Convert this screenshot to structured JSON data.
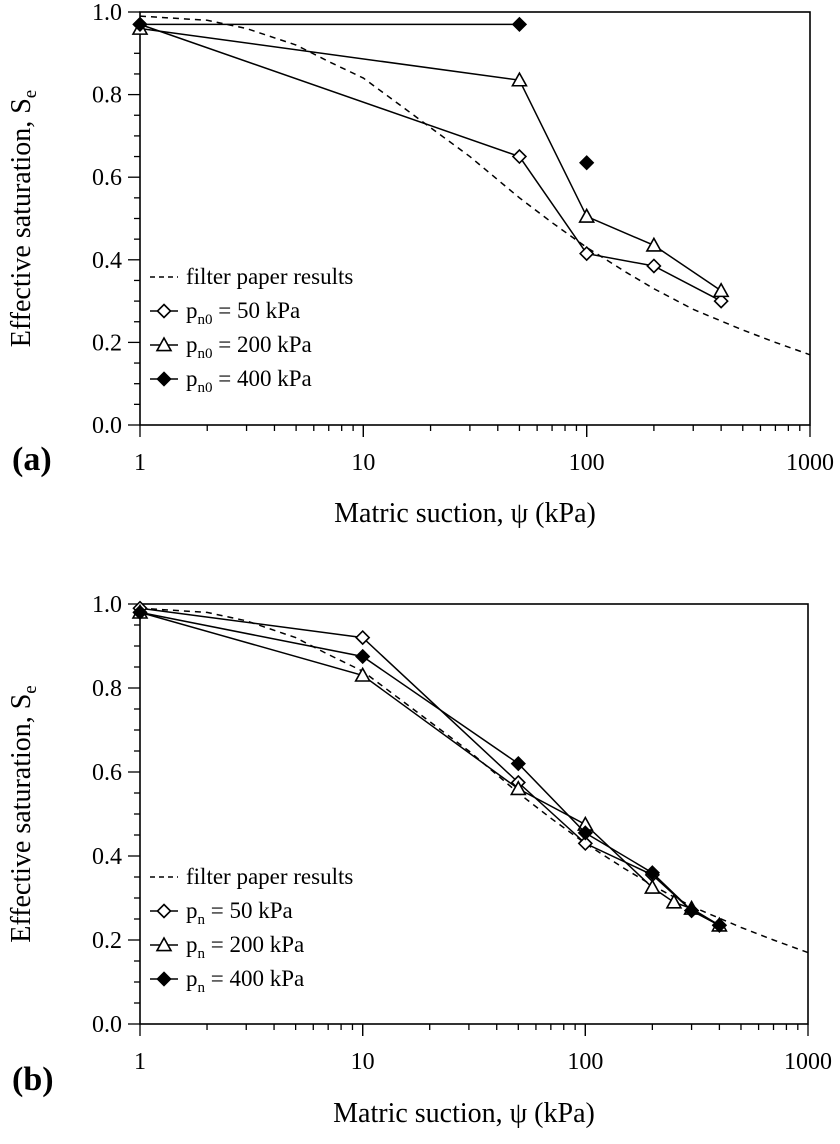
{
  "chart_data": [
    {
      "type": "scatter",
      "panel_label": "(a)",
      "xlabel": "Matric suction, ψ (kPa)",
      "ylabel_main": "Effective saturation, S",
      "ylabel_sub": "e",
      "x_scale": "log",
      "xlim": [
        1,
        1000
      ],
      "ylim": [
        0,
        1.0
      ],
      "x_ticks": [
        1,
        10,
        100,
        1000
      ],
      "x_tick_labels": [
        "1",
        "10",
        "100",
        "1000"
      ],
      "y_ticks": [
        0.0,
        0.2,
        0.4,
        0.6,
        0.8,
        1.0
      ],
      "y_tick_labels": [
        "0.0",
        "0.2",
        "0.4",
        "0.6",
        "0.8",
        "1.0"
      ],
      "grid": false,
      "legend_position": "bottom-left",
      "filter_paper": {
        "name": "filter paper results",
        "style": "dashed",
        "x": [
          1,
          2,
          3,
          5,
          7,
          10,
          15,
          20,
          30,
          50,
          70,
          100,
          150,
          200,
          300,
          500,
          700,
          1000
        ],
        "y": [
          0.99,
          0.98,
          0.96,
          0.92,
          0.88,
          0.84,
          0.77,
          0.72,
          0.65,
          0.55,
          0.49,
          0.43,
          0.37,
          0.33,
          0.28,
          0.23,
          0.2,
          0.17
        ]
      },
      "series": [
        {
          "legend_pre": "p",
          "legend_sub": "n0",
          "legend_post": " = 50 kPa",
          "marker": "diamond-open",
          "segments": [
            {
              "x": [
                1,
                50,
                100,
                200,
                400
              ],
              "y": [
                0.97,
                0.65,
                0.415,
                0.385,
                0.3
              ]
            }
          ]
        },
        {
          "legend_pre": "p",
          "legend_sub": "n0",
          "legend_post": " = 200 kPa",
          "marker": "triangle-open",
          "segments": [
            {
              "x": [
                1,
                50,
                100,
                200,
                400
              ],
              "y": [
                0.96,
                0.835,
                0.505,
                0.435,
                0.325
              ]
            }
          ]
        },
        {
          "legend_pre": "p",
          "legend_sub": "n0",
          "legend_post": " = 400 kPa",
          "marker": "diamond-filled",
          "segments": [
            {
              "x": [
                1,
                50
              ],
              "y": [
                0.97,
                0.97
              ]
            },
            {
              "x": [
                100
              ],
              "y": [
                0.635
              ]
            }
          ]
        }
      ]
    },
    {
      "type": "scatter",
      "panel_label": "(b)",
      "xlabel": "Matric suction, ψ (kPa)",
      "ylabel_main": "Effective saturation, S",
      "ylabel_sub": "e",
      "x_scale": "log",
      "xlim": [
        1,
        1000
      ],
      "ylim": [
        0,
        1.0
      ],
      "x_ticks": [
        1,
        10,
        100,
        1000
      ],
      "x_tick_labels": [
        "1",
        "10",
        "100",
        "1000"
      ],
      "y_ticks": [
        0.0,
        0.2,
        0.4,
        0.6,
        0.8,
        1.0
      ],
      "y_tick_labels": [
        "0.0",
        "0.2",
        "0.4",
        "0.6",
        "0.8",
        "1.0"
      ],
      "grid": false,
      "legend_position": "bottom-left",
      "filter_paper": {
        "name": "filter paper results",
        "style": "dashed",
        "x": [
          1,
          2,
          3,
          5,
          7,
          10,
          15,
          20,
          30,
          50,
          70,
          100,
          150,
          200,
          300,
          500,
          700,
          1000
        ],
        "y": [
          0.99,
          0.98,
          0.96,
          0.92,
          0.88,
          0.84,
          0.77,
          0.72,
          0.65,
          0.55,
          0.49,
          0.43,
          0.37,
          0.33,
          0.28,
          0.23,
          0.2,
          0.17
        ]
      },
      "series": [
        {
          "legend_pre": "p",
          "legend_sub": "n",
          "legend_post": " = 50 kPa",
          "marker": "diamond-open",
          "segments": [
            {
              "x": [
                1,
                10,
                50,
                100,
                200,
                300,
                400
              ],
              "y": [
                0.99,
                0.92,
                0.575,
                0.43,
                0.355,
                0.27,
                0.235
              ]
            }
          ]
        },
        {
          "legend_pre": "p",
          "legend_sub": "n",
          "legend_post": " = 200 kPa",
          "marker": "triangle-open",
          "segments": [
            {
              "x": [
                1,
                10,
                50,
                100,
                200,
                250,
                300,
                400
              ],
              "y": [
                0.98,
                0.83,
                0.56,
                0.475,
                0.325,
                0.29,
                0.275,
                0.235
              ]
            }
          ]
        },
        {
          "legend_pre": "p",
          "legend_sub": "n",
          "legend_post": " = 400 kPa",
          "marker": "diamond-filled",
          "segments": [
            {
              "x": [
                1,
                10,
                50,
                100,
                200,
                300,
                400
              ],
              "y": [
                0.98,
                0.875,
                0.62,
                0.455,
                0.36,
                0.27,
                0.235
              ]
            }
          ]
        }
      ]
    }
  ]
}
